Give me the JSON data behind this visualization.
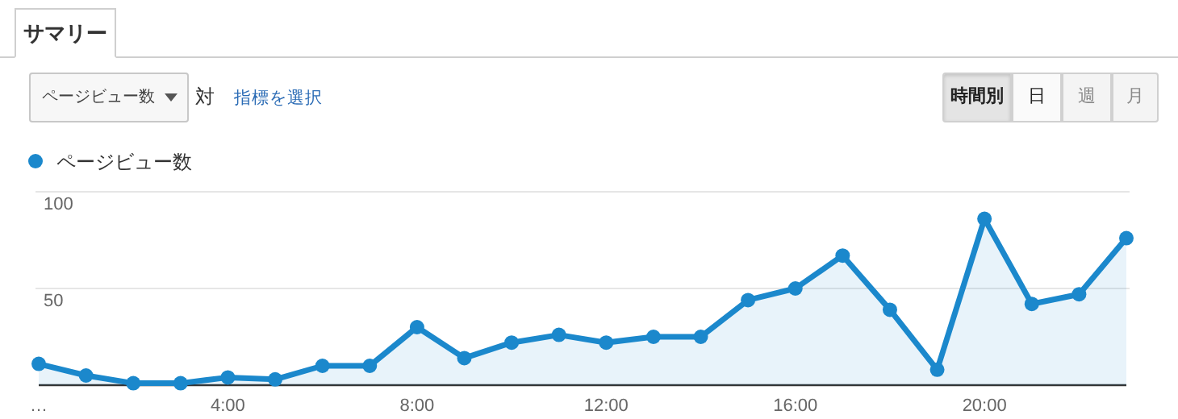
{
  "chart_data": {
    "type": "area",
    "title": "サマリー",
    "categories": [
      "…",
      null,
      null,
      null,
      "4:00",
      null,
      null,
      null,
      "8:00",
      null,
      null,
      null,
      "12:00",
      null,
      null,
      null,
      "16:00",
      null,
      null,
      null,
      "20:00",
      null,
      null,
      null
    ],
    "series": [
      {
        "name": "ページビュー数",
        "color": "#1b88cc",
        "values": [
          11,
          5,
          1,
          1,
          4,
          3,
          10,
          10,
          30,
          14,
          22,
          26,
          22,
          25,
          25,
          44,
          50,
          67,
          39,
          8,
          86,
          42,
          47,
          76
        ]
      }
    ],
    "ylim": [
      0,
      100
    ],
    "yticks": [
      50,
      100
    ],
    "grid": "y",
    "legend": "top left",
    "marker": "circle",
    "annotations": [
      "ページビュー数",
      "対",
      "指標を選択",
      "時間別",
      "日",
      "週",
      "月"
    ]
  }
}
